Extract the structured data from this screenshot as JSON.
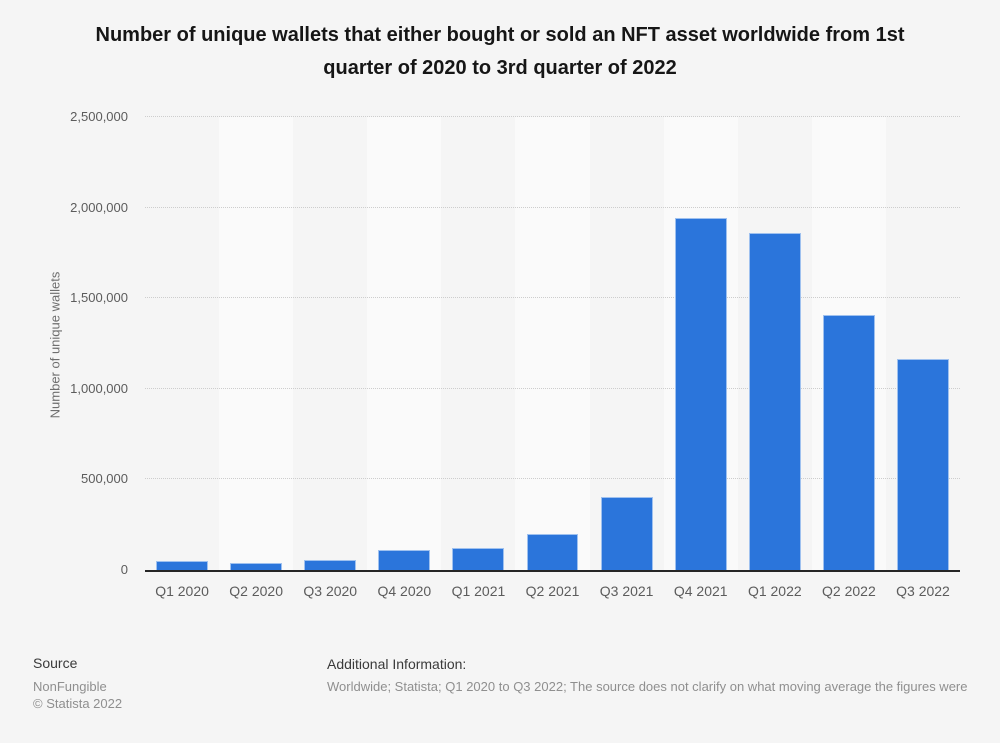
{
  "title": "Number of unique wallets that either bought or sold an NFT asset worldwide from 1st quarter of 2020 to 3rd quarter of 2022",
  "chart_data": {
    "type": "bar",
    "title": "Number of unique wallets that either bought or sold an NFT asset worldwide from 1st quarter of 2020 to 3rd quarter of 2022",
    "categories": [
      "Q1 2020",
      "Q2 2020",
      "Q3 2020",
      "Q4 2020",
      "Q1 2021",
      "Q2 2021",
      "Q3 2021",
      "Q4 2021",
      "Q1 2022",
      "Q2 2022",
      "Q3 2022"
    ],
    "values": [
      52000,
      37000,
      58000,
      112000,
      121000,
      197000,
      405000,
      1945000,
      1860000,
      1408000,
      1167000
    ],
    "xlabel": "",
    "ylabel": "Number of unique wallets",
    "ylim": [
      0,
      2500000
    ],
    "ytick_values": [
      0,
      500000,
      1000000,
      1500000,
      2000000,
      2500000
    ],
    "ytick_labels": [
      "0",
      "500,000",
      "1,000,000",
      "1,500,000",
      "2,000,000",
      "2,500,000"
    ],
    "grid": "horizontal-dotted",
    "legend": "none",
    "colors": {
      "bar": "#2b75db",
      "band": "#fafafa",
      "background": "#f5f5f5",
      "gridline": "#cdcdcd",
      "axis": "#262626"
    }
  },
  "footer": {
    "source_label": "Source",
    "source_name": "NonFungible",
    "copyright": "© Statista 2022",
    "additional_info_label": "Additional Information:",
    "additional_info": "Worldwide; Statista; Q1 2020 to Q3 2022; The source does not clarify on what moving average the figures were"
  }
}
